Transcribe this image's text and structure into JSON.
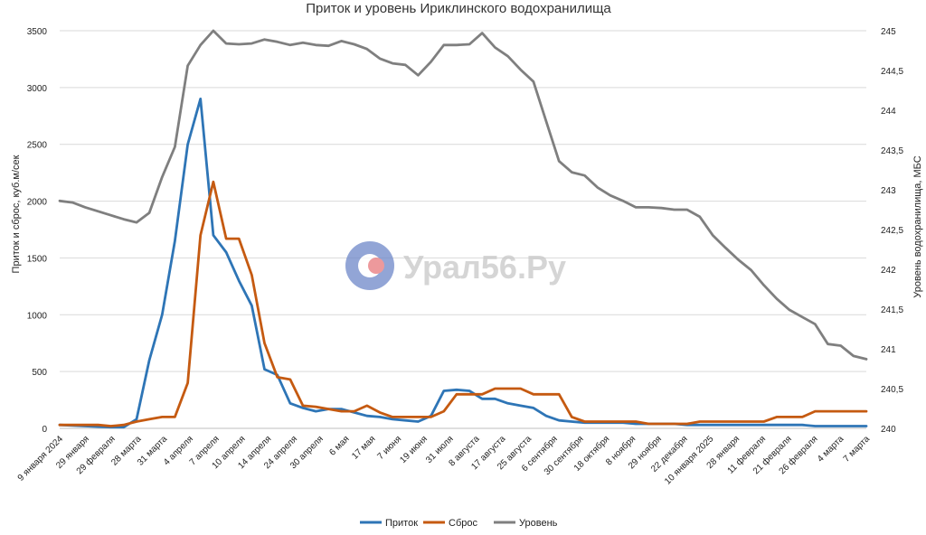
{
  "chart_data": {
    "type": "line",
    "title": "Приток и уровень Ириклинского водохранилища",
    "ylabel": "Приток и сброс, куб.м/сек",
    "y2label": "Уровень водохранилища, МБС",
    "ylim": [
      0,
      3500
    ],
    "y2lim": [
      240,
      245
    ],
    "yticks": [
      "0",
      "500",
      "1000",
      "1500",
      "2000",
      "2500",
      "3000",
      "3500"
    ],
    "y2ticks": [
      "240",
      "240,5",
      "241",
      "241,5",
      "242",
      "242,5",
      "243",
      "243,5",
      "244",
      "244,5",
      "245"
    ],
    "grid": true,
    "legend_position": "bottom",
    "x_labels": [
      "9 января 2024",
      "29 января",
      "29 февраля",
      "28 марта",
      "31 марта",
      "4 апреля",
      "7 апреля",
      "10 апреля",
      "14 апреля",
      "24 апреля",
      "30 апреля",
      "6 мая",
      "17 мая",
      "7 июня",
      "19 июня",
      "31 июля",
      "8 августа",
      "17 августа",
      "25 августа",
      "6 сентября",
      "30 сентября",
      "18 октября",
      "8 ноября",
      "29 ноября",
      "22 декабря",
      "10 января 2025",
      "28 января",
      "11 февраля",
      "21 февраля",
      "26 февраля",
      "4 марта",
      "7 марта"
    ],
    "series": [
      {
        "name": "Приток",
        "axis": "left",
        "color": "#2e75b6",
        "values": [
          30,
          25,
          20,
          15,
          10,
          10,
          80,
          600,
          1000,
          1650,
          2500,
          2900,
          1700,
          1550,
          1300,
          1080,
          520,
          470,
          220,
          180,
          150,
          170,
          170,
          140,
          110,
          100,
          80,
          70,
          60,
          110,
          330,
          340,
          330,
          260,
          260,
          220,
          200,
          180,
          110,
          70,
          60,
          50,
          50,
          50,
          50,
          40,
          40,
          40,
          40,
          30,
          30,
          30,
          30,
          30,
          30,
          30,
          30,
          30,
          30,
          20,
          20,
          20,
          20,
          20
        ]
      },
      {
        "name": "Сброс",
        "axis": "left",
        "color": "#c55a11",
        "values": [
          30,
          30,
          30,
          30,
          20,
          30,
          60,
          80,
          100,
          100,
          400,
          1700,
          2170,
          1670,
          1670,
          1350,
          750,
          450,
          430,
          200,
          190,
          170,
          150,
          150,
          200,
          140,
          100,
          100,
          100,
          100,
          150,
          300,
          300,
          300,
          350,
          350,
          350,
          300,
          300,
          300,
          100,
          60,
          60,
          60,
          60,
          60,
          40,
          40,
          40,
          40,
          60,
          60,
          60,
          60,
          60,
          60,
          100,
          100,
          100,
          150,
          150,
          150,
          150,
          150
        ]
      },
      {
        "name": "Уровень",
        "axis": "right",
        "color": "#7f7f7f",
        "values": [
          242.86,
          242.84,
          242.78,
          242.73,
          242.68,
          242.63,
          242.59,
          242.71,
          243.16,
          243.54,
          244.56,
          244.82,
          245.0,
          244.84,
          244.83,
          244.84,
          244.89,
          244.86,
          244.82,
          244.85,
          244.82,
          244.81,
          244.87,
          244.83,
          244.77,
          244.65,
          244.59,
          244.57,
          244.44,
          244.61,
          244.82,
          244.82,
          244.83,
          244.97,
          244.79,
          244.68,
          244.51,
          244.36,
          243.86,
          243.36,
          243.22,
          243.18,
          243.03,
          242.93,
          242.86,
          242.78,
          242.78,
          242.77,
          242.75,
          242.75,
          242.66,
          242.43,
          242.27,
          242.12,
          241.99,
          241.8,
          241.63,
          241.49,
          241.4,
          241.31,
          241.06,
          241.04,
          240.91,
          240.87
        ]
      }
    ]
  },
  "watermark": {
    "text": "Урал56.Ру"
  }
}
